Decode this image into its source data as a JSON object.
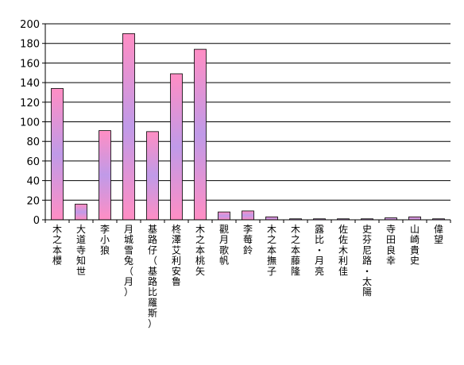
{
  "chart_data": {
    "type": "bar",
    "categories": [
      "木之本櫻",
      "大道寺知世",
      "李小狼",
      "月城雪兔（月）",
      "基路仔（基路比羅斯）",
      "柊澤艾利安鲁",
      "木之本桃矢",
      "觀月歌帆",
      "李莓鈴",
      "木之本撫子",
      "木之本藤隆",
      "露比・月亮",
      "佐佐木利佳",
      "史芬尼路・太陽",
      "寺田良幸",
      "山崎貴史",
      "偉望"
    ],
    "values": [
      134,
      16,
      91,
      190,
      90,
      149,
      174,
      8,
      9,
      3,
      1,
      1,
      1,
      1,
      2,
      3,
      1
    ],
    "ylim": [
      0,
      200
    ],
    "yticks": [
      0,
      20,
      40,
      60,
      80,
      100,
      120,
      140,
      160,
      180,
      200
    ],
    "grid": true,
    "title": "",
    "xlabel": "",
    "ylabel": "",
    "colors": {
      "bar_top": "#ff8ec4",
      "bar_mid": "#c09ae8",
      "bar_bottom": "#ff8ec4",
      "bar_stroke": "#000000",
      "grid": "#000000",
      "plot_background": "#ffffff"
    }
  }
}
